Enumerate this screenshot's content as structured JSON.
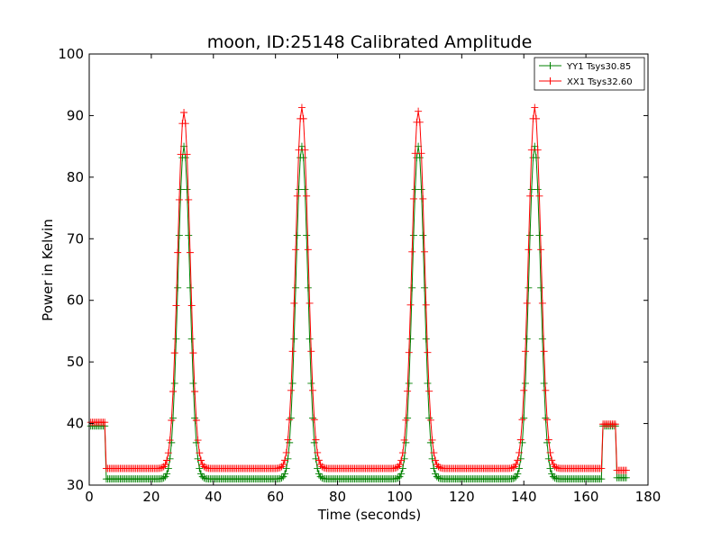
{
  "chart_data": {
    "type": "line",
    "title": "moon, ID:25148 Calibrated Amplitude",
    "xlabel": "Time (seconds)",
    "ylabel": "Power in Kelvin",
    "xlim": [
      0,
      180
    ],
    "ylim": [
      30,
      100
    ],
    "xticks": [
      0,
      20,
      40,
      60,
      80,
      100,
      120,
      140,
      160,
      180
    ],
    "yticks": [
      30,
      40,
      50,
      60,
      70,
      80,
      90,
      100
    ],
    "grid": false,
    "legend_position": "top-right",
    "sample_interval": 0.5,
    "series": [
      {
        "name": "YY1 Tsys30.85",
        "color": "#008000",
        "marker": "+",
        "segments": [
          {
            "x_start": 0.5,
            "x_end": 5,
            "level": 39.6
          },
          {
            "x_start": 5.5,
            "x_end": 165,
            "level": 31.0,
            "peaks": [
              {
                "x": 30.5,
                "amplitude": 54.0,
                "width": 1.9
              },
              {
                "x": 68.5,
                "amplitude": 54.0,
                "width": 1.9
              },
              {
                "x": 106.0,
                "amplitude": 54.0,
                "width": 1.9
              },
              {
                "x": 143.5,
                "amplitude": 54.0,
                "width": 1.9
              }
            ]
          },
          {
            "x_start": 165.5,
            "x_end": 169.5,
            "level": 39.6
          },
          {
            "x_start": 170,
            "x_end": 173,
            "level": 31.2
          }
        ]
      },
      {
        "name": "XX1 Tsys32.60",
        "color": "#ff0000",
        "marker": "+",
        "segments": [
          {
            "x_start": 0.5,
            "x_end": 5,
            "level": 40.2
          },
          {
            "x_start": 5.5,
            "x_end": 165,
            "level": 32.7,
            "peaks": [
              {
                "x": 30.5,
                "amplitude": 57.8,
                "width": 2.0
              },
              {
                "x": 68.5,
                "amplitude": 58.6,
                "width": 2.0
              },
              {
                "x": 106.0,
                "amplitude": 58.0,
                "width": 2.0
              },
              {
                "x": 143.5,
                "amplitude": 58.6,
                "width": 2.0
              }
            ]
          },
          {
            "x_start": 165.5,
            "x_end": 169.5,
            "level": 39.9
          },
          {
            "x_start": 170,
            "x_end": 173,
            "level": 32.4
          }
        ]
      }
    ]
  }
}
